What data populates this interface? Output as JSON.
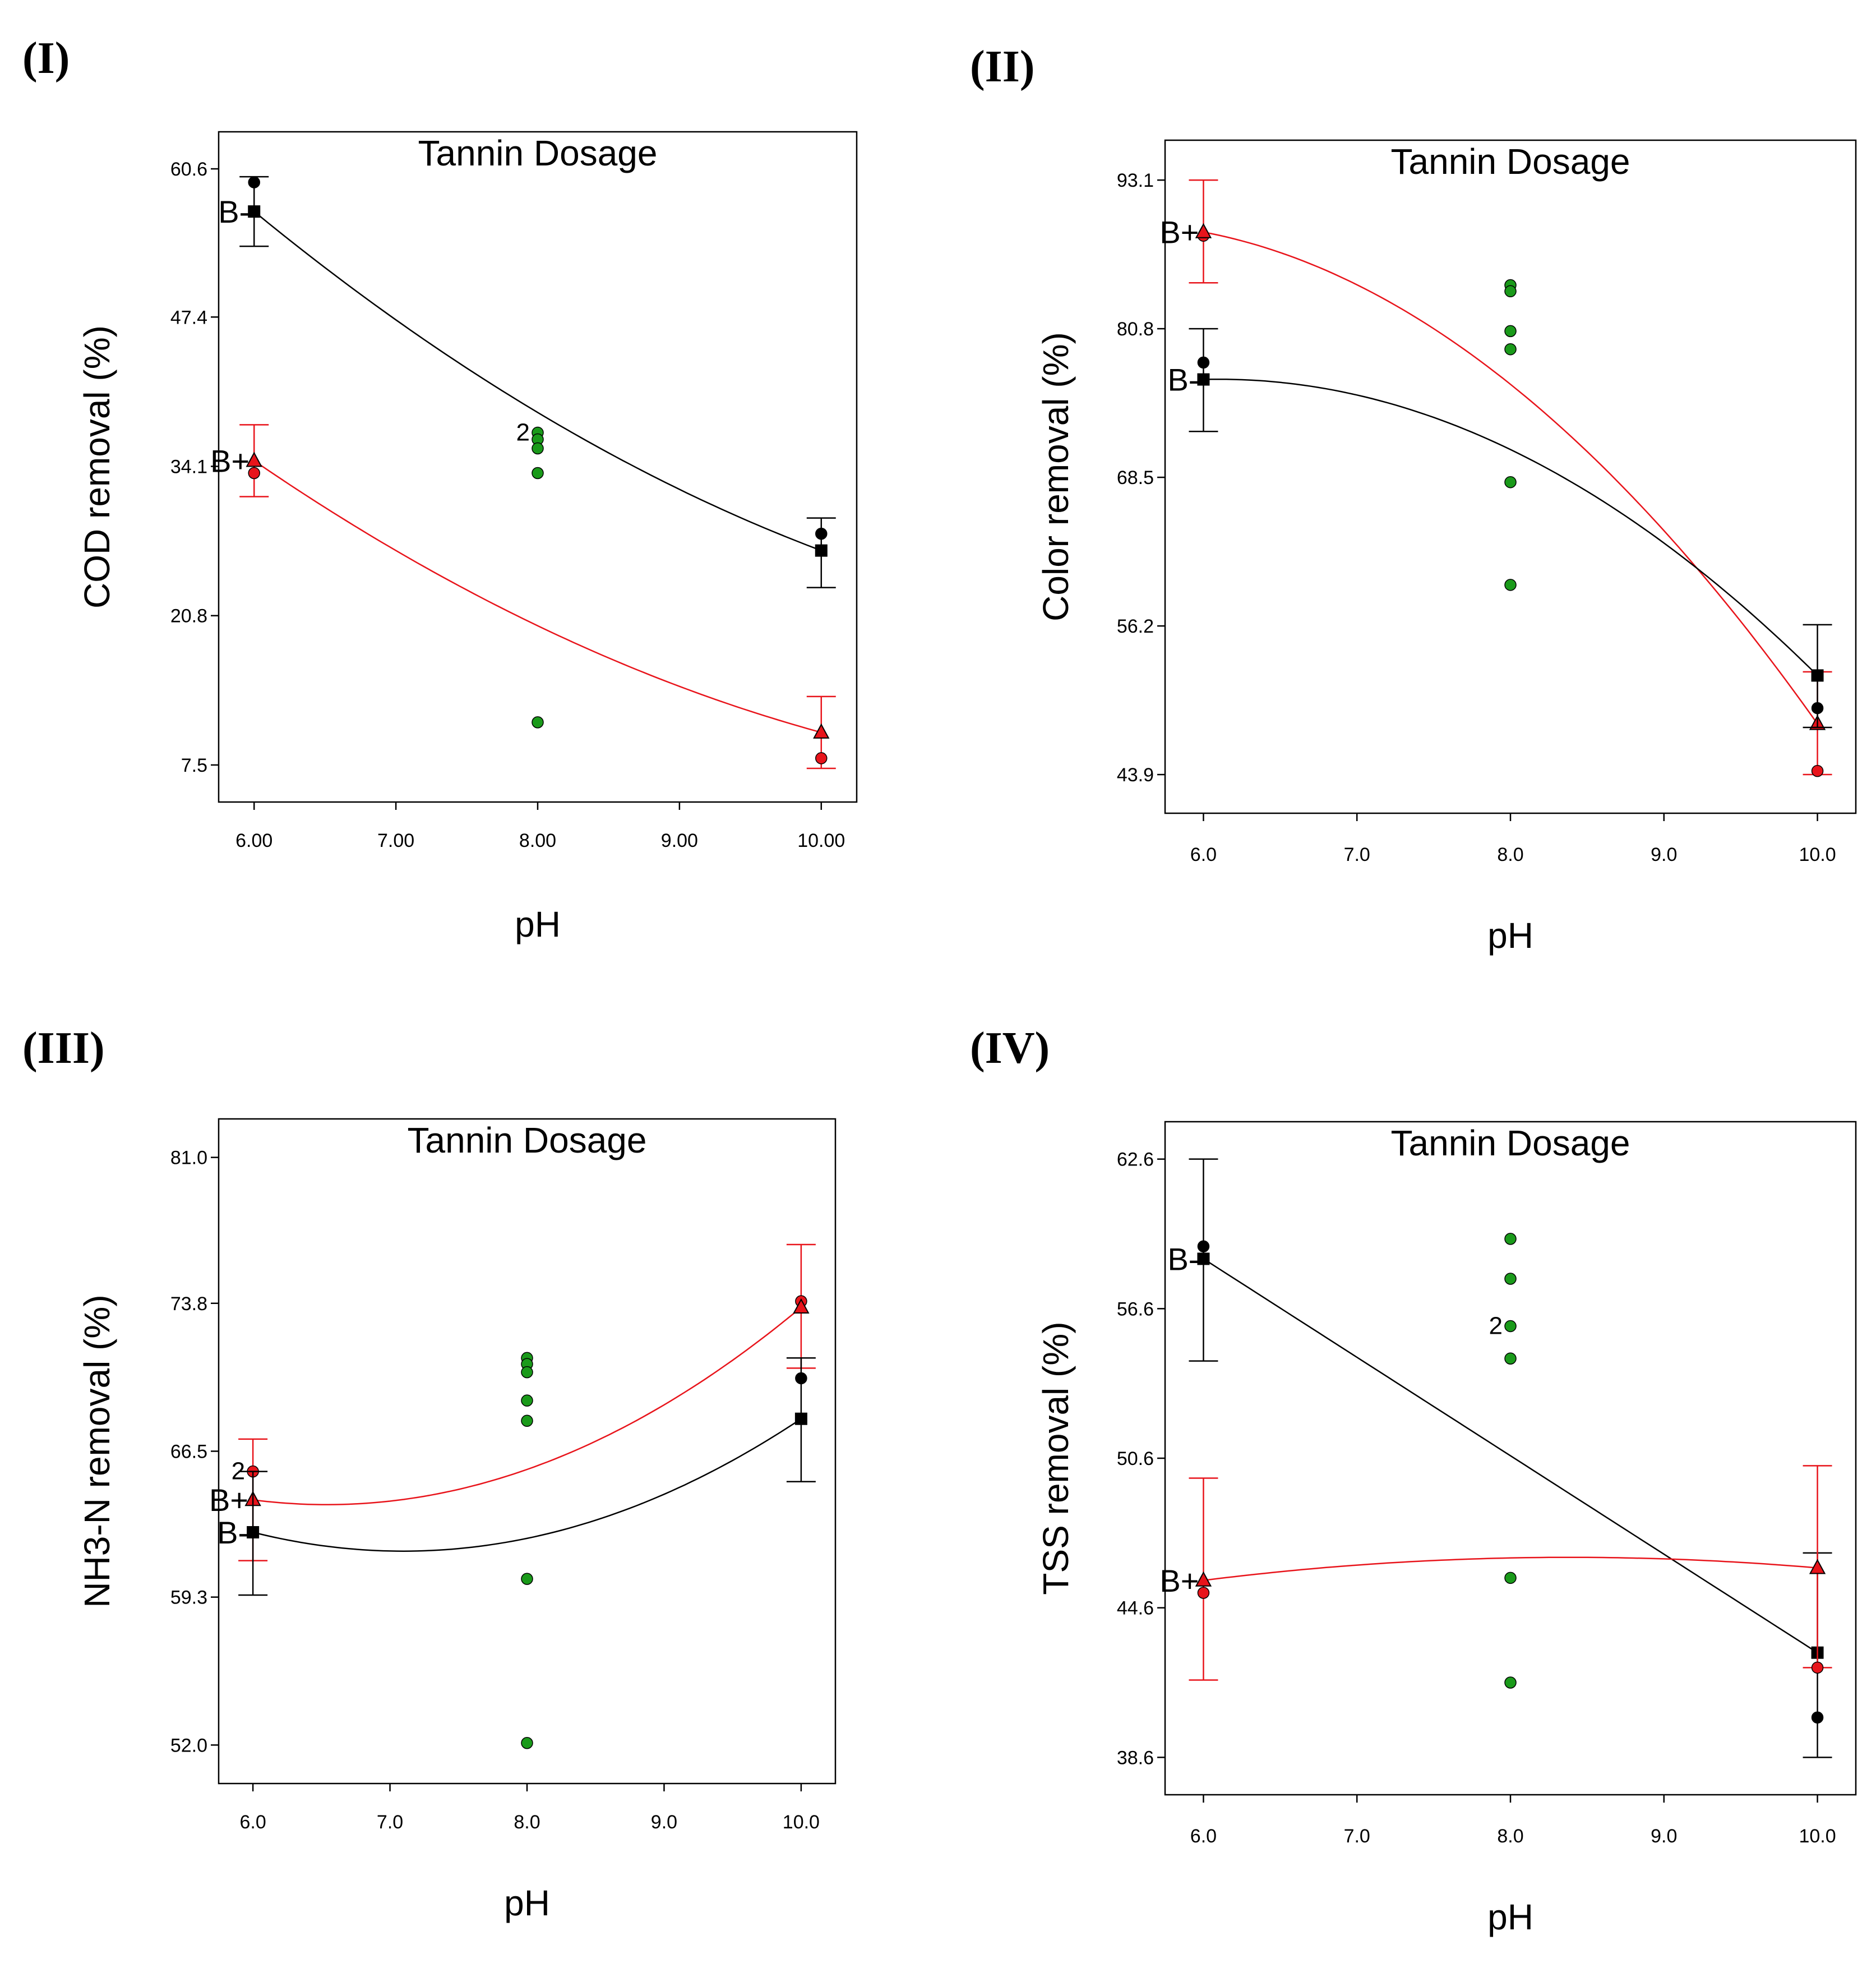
{
  "chart_data": [
    {
      "panel": "(I)",
      "type": "scatter",
      "title": "Tannin Dosage",
      "xlabel": "pH",
      "ylabel": "COD removal (%)",
      "xlim": [
        5.75,
        10.25
      ],
      "ylim": [
        4.2,
        63.9
      ],
      "xticks": [
        6,
        7,
        8,
        9,
        10
      ],
      "xtick_labels": [
        "6.00",
        "7.00",
        "8.00",
        "9.00",
        "10.00"
      ],
      "yticks": [
        7.5,
        20.8,
        34.1,
        47.4,
        60.6
      ],
      "ytick_labels": [
        "7.5",
        "20.8",
        "34.1",
        "47.4",
        "60.6"
      ],
      "series": [
        {
          "name": "B-",
          "color": "#000000",
          "curve_x": [
            6,
            8,
            10
          ],
          "curve_y": [
            56.8,
            38.9,
            26.6
          ],
          "predicted": [
            {
              "x": 6,
              "y": 56.8
            },
            {
              "x": 10,
              "y": 26.6
            }
          ],
          "observed": [
            {
              "x": 6,
              "y": 59.4
            },
            {
              "x": 10,
              "y": 28.1
            }
          ],
          "error_bars": [
            {
              "x": 6,
              "low": 53.7,
              "high": 59.9
            },
            {
              "x": 10,
              "low": 23.3,
              "high": 29.5
            }
          ]
        },
        {
          "name": "B+",
          "color": "#e8141b",
          "curve_x": [
            6,
            8,
            10
          ],
          "curve_y": [
            34.6,
            19.9,
            10.4
          ],
          "predicted": [
            {
              "x": 6,
              "y": 34.6
            },
            {
              "x": 10,
              "y": 10.4
            }
          ],
          "observed": [
            {
              "x": 6,
              "y": 33.5
            },
            {
              "x": 10,
              "y": 8.1
            }
          ],
          "error_bars": [
            {
              "x": 6,
              "low": 31.4,
              "high": 37.8
            },
            {
              "x": 10,
              "low": 7.2,
              "high": 13.6
            }
          ]
        }
      ],
      "center_points": {
        "color": "#1a9a1a",
        "x": 8,
        "y": [
          37.1,
          36.5,
          35.7,
          33.5,
          11.3
        ]
      },
      "annotations": [
        {
          "text": "2",
          "x": 8,
          "y": 37.1
        }
      ]
    },
    {
      "panel": "(II)",
      "type": "scatter",
      "title": "Tannin Dosage",
      "xlabel": "pH",
      "ylabel": "Color removal (%)",
      "xlim": [
        5.75,
        10.25
      ],
      "ylim": [
        40.7,
        96.4
      ],
      "xticks": [
        6,
        7,
        8,
        9,
        10
      ],
      "xtick_labels": [
        "6.0",
        "7.0",
        "8.0",
        "9.0",
        "10.0"
      ],
      "yticks": [
        43.9,
        56.2,
        68.5,
        80.8,
        93.1
      ],
      "ytick_labels": [
        "43.9",
        "56.2",
        "68.5",
        "80.8",
        "93.1"
      ],
      "series": [
        {
          "name": "B+",
          "color": "#e8141b",
          "curve_x": [
            6,
            8,
            10
          ],
          "curve_y": [
            88.8,
            76.2,
            48.1
          ],
          "predicted": [
            {
              "x": 6,
              "y": 88.8
            },
            {
              "x": 10,
              "y": 48.1
            }
          ],
          "observed": [
            {
              "x": 6,
              "y": 88.5
            },
            {
              "x": 10,
              "y": 44.2
            }
          ],
          "error_bars": [
            {
              "x": 6,
              "low": 84.6,
              "high": 93.1
            },
            {
              "x": 10,
              "low": 43.9,
              "high": 52.4
            }
          ]
        },
        {
          "name": "B-",
          "color": "#000000",
          "curve_x": [
            6,
            8,
            10
          ],
          "curve_y": [
            76.6,
            70.8,
            52.1
          ],
          "predicted": [
            {
              "x": 6,
              "y": 76.6
            },
            {
              "x": 10,
              "y": 52.1
            }
          ],
          "observed": [
            {
              "x": 6,
              "y": 78.0
            },
            {
              "x": 10,
              "y": 49.4
            }
          ],
          "error_bars": [
            {
              "x": 6,
              "low": 72.3,
              "high": 80.8
            },
            {
              "x": 10,
              "low": 47.8,
              "high": 56.3
            }
          ]
        }
      ],
      "center_points": {
        "color": "#1a9a1a",
        "x": 8,
        "y": [
          84.4,
          83.9,
          80.6,
          79.1,
          68.1,
          59.6
        ]
      },
      "annotations": []
    },
    {
      "panel": "(III)",
      "type": "scatter",
      "title": "Tannin Dosage",
      "xlabel": "pH",
      "ylabel": "NH3-N removal (%)",
      "xlim": [
        5.75,
        10.25
      ],
      "ylim": [
        50.1,
        82.9
      ],
      "xticks": [
        6,
        7,
        8,
        9,
        10
      ],
      "xtick_labels": [
        "6.0",
        "7.0",
        "8.0",
        "9.0",
        "10.0"
      ],
      "yticks": [
        52.0,
        59.3,
        66.5,
        73.8,
        81.0
      ],
      "ytick_labels": [
        "52.0",
        "59.3",
        "66.5",
        "73.8",
        "81.0"
      ],
      "series": [
        {
          "name": "B+",
          "color": "#e8141b",
          "curve_x": [
            6,
            8,
            10
          ],
          "curve_y": [
            64.1,
            65.6,
            73.6
          ],
          "predicted": [
            {
              "x": 6,
              "y": 64.1
            },
            {
              "x": 10,
              "y": 73.6
            }
          ],
          "observed": [
            {
              "x": 6,
              "y": 65.5
            },
            {
              "x": 10,
              "y": 73.9
            }
          ],
          "error_bars": [
            {
              "x": 6,
              "low": 61.1,
              "high": 67.1
            },
            {
              "x": 10,
              "low": 70.6,
              "high": 76.7
            }
          ]
        },
        {
          "name": "B-",
          "color": "#000000",
          "curve_x": [
            6,
            8,
            10
          ],
          "curve_y": [
            62.5,
            62.2,
            68.1
          ],
          "predicted": [
            {
              "x": 6,
              "y": 62.5
            },
            {
              "x": 10,
              "y": 68.1
            }
          ],
          "observed": [
            {
              "x": 10,
              "y": 70.1
            }
          ],
          "error_bars": [
            {
              "x": 6,
              "low": 59.4,
              "high": 65.5
            },
            {
              "x": 10,
              "low": 65.0,
              "high": 71.1
            }
          ]
        }
      ],
      "center_points": {
        "color": "#1a9a1a",
        "x": 8,
        "y": [
          71.1,
          70.8,
          70.4,
          69.0,
          68.0,
          60.2,
          52.1
        ]
      },
      "annotations": [
        {
          "text": "2",
          "x": 6,
          "y": 65.5
        }
      ]
    },
    {
      "panel": "(IV)",
      "type": "scatter",
      "title": "Tannin Dosage",
      "xlabel": "pH",
      "ylabel": "TSS removal (%)",
      "xlim": [
        5.75,
        10.25
      ],
      "ylim": [
        37.1,
        64.1
      ],
      "xticks": [
        6,
        7,
        8,
        9,
        10
      ],
      "xtick_labels": [
        "6.0",
        "7.0",
        "8.0",
        "9.0",
        "10.0"
      ],
      "yticks": [
        38.6,
        44.6,
        50.6,
        56.6,
        62.6
      ],
      "ytick_labels": [
        "38.6",
        "44.6",
        "50.6",
        "56.6",
        "62.6"
      ],
      "series": [
        {
          "name": "B-",
          "color": "#000000",
          "curve_x": [
            6,
            8,
            10
          ],
          "curve_y": [
            58.6,
            50.7,
            42.8
          ],
          "predicted": [
            {
              "x": 6,
              "y": 58.6
            },
            {
              "x": 10,
              "y": 42.8
            }
          ],
          "observed": [
            {
              "x": 6,
              "y": 59.1
            },
            {
              "x": 10,
              "y": 40.2
            }
          ],
          "error_bars": [
            {
              "x": 6,
              "low": 54.5,
              "high": 62.6
            },
            {
              "x": 10,
              "low": 38.6,
              "high": 46.8
            }
          ]
        },
        {
          "name": "B+",
          "color": "#e8141b",
          "curve_x": [
            6,
            8,
            10
          ],
          "curve_y": [
            45.7,
            46.6,
            46.2
          ],
          "predicted": [
            {
              "x": 6,
              "y": 45.7
            },
            {
              "x": 10,
              "y": 46.2
            }
          ],
          "observed": [
            {
              "x": 6,
              "y": 45.2
            },
            {
              "x": 10,
              "y": 42.2
            }
          ],
          "error_bars": [
            {
              "x": 6,
              "low": 41.7,
              "high": 49.8
            },
            {
              "x": 10,
              "low": 42.2,
              "high": 50.3
            }
          ]
        }
      ],
      "center_points": {
        "color": "#1a9a1a",
        "x": 8,
        "y": [
          59.4,
          57.8,
          55.9,
          54.6,
          45.8,
          41.6
        ]
      },
      "annotations": [
        {
          "text": "2",
          "x": 8,
          "y": 55.9
        }
      ]
    }
  ]
}
